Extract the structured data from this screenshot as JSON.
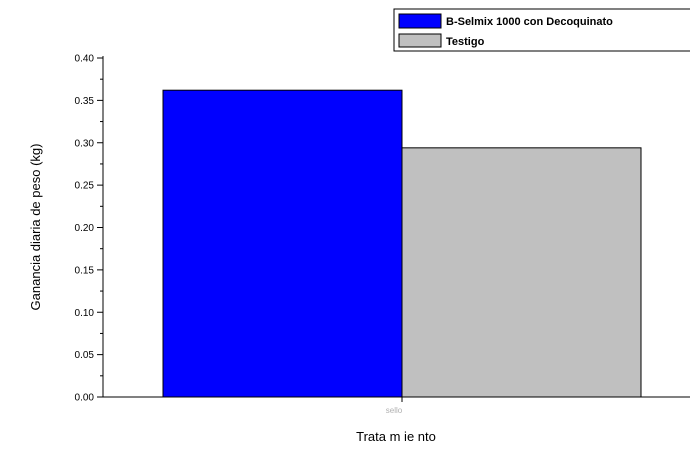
{
  "chart_data": {
    "type": "bar",
    "xlabel": "Trata m ie nto",
    "ylabel": "Ganancia diaria de peso (kg)",
    "categories": [
      "sello"
    ],
    "series": [
      {
        "name": "B-Selmix 1000 con Decoquinato",
        "values": [
          0.362
        ],
        "color": "#0000ff"
      },
      {
        "name": "Testigo",
        "values": [
          0.294
        ],
        "color": "#c0c0c0"
      }
    ],
    "ylim": [
      0.0,
      0.4
    ],
    "yticks": [
      "0.00",
      "0.05",
      "0.10",
      "0.15",
      "0.20",
      "0.25",
      "0.30",
      "0.35",
      "0.40"
    ],
    "legend_position": "top-right",
    "grid": false
  }
}
